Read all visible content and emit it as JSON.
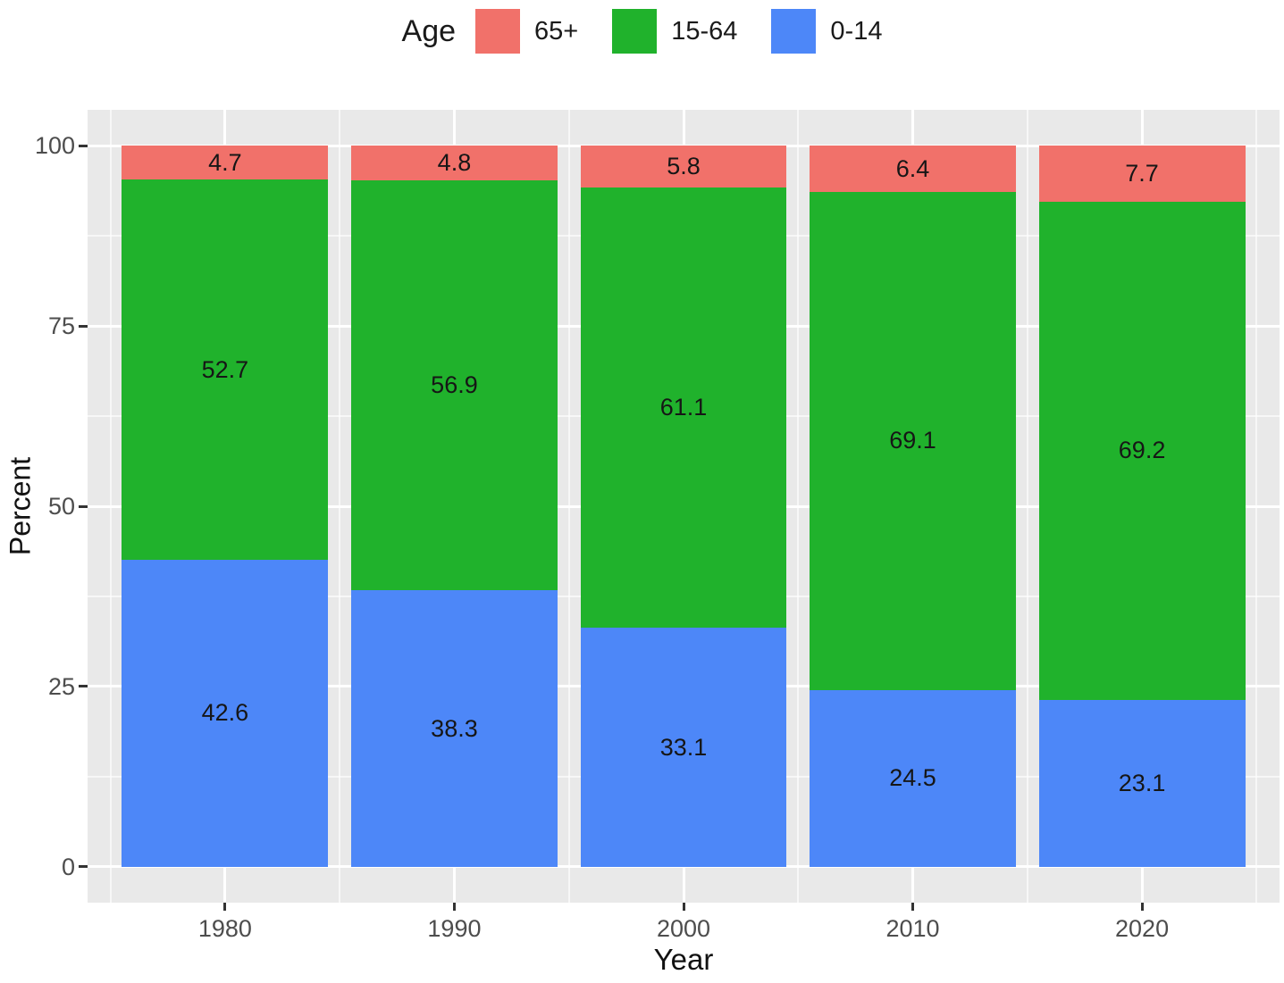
{
  "chart_data": {
    "type": "bar",
    "stacked": true,
    "legend_title": "Age",
    "legend_position": "top",
    "legend_order": [
      "65+",
      "15-64",
      "0-14"
    ],
    "categories": [
      "1980",
      "1990",
      "2000",
      "2010",
      "2020"
    ],
    "series": [
      {
        "name": "0-14",
        "color": "#4D87F8",
        "values": [
          42.6,
          38.3,
          33.1,
          24.5,
          23.1
        ]
      },
      {
        "name": "15-64",
        "color": "#20B22C",
        "values": [
          52.7,
          56.9,
          61.1,
          69.1,
          69.2
        ]
      },
      {
        "name": "65+",
        "color": "#F1716A",
        "values": [
          4.7,
          4.8,
          5.8,
          6.4,
          7.7
        ]
      }
    ],
    "xlabel": "Year",
    "ylabel": "Percent",
    "y_ticks": [
      0,
      25,
      50,
      75,
      100
    ],
    "y_minor_ticks": [
      12.5,
      37.5,
      62.5,
      87.5
    ],
    "ylim": [
      -5,
      105
    ],
    "bar_width_fraction": 0.9,
    "panel_background": "#E9E9E9",
    "grid_color": "#FFFFFF",
    "bar_label_color": "#161616",
    "axis_text_color": "#4d4d4d"
  }
}
